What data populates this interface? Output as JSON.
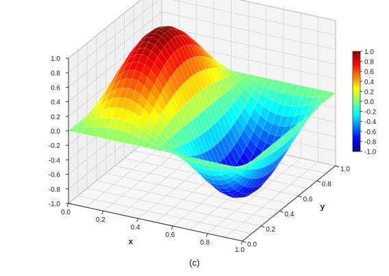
{
  "caption": "(c)",
  "chart_data": {
    "type": "surface3d",
    "function": "sin(2*pi*x) * sin(pi*y)",
    "x": [
      0.0,
      0.2,
      0.4,
      0.6,
      0.8,
      1.0
    ],
    "y": [
      0.0,
      0.2,
      0.4,
      0.6,
      0.8,
      1.0
    ],
    "z_samples": [
      {
        "x": 0.25,
        "y": 0.5,
        "z": 1.0
      },
      {
        "x": 0.75,
        "y": 0.5,
        "z": -1.0
      },
      {
        "x": 0.0,
        "y": 0.5,
        "z": 0.0
      },
      {
        "x": 0.5,
        "y": 0.5,
        "z": 0.0
      },
      {
        "x": 1.0,
        "y": 0.5,
        "z": 0.0
      }
    ],
    "xlabel": "x",
    "ylabel": "y",
    "zlabel": "",
    "xlim": [
      0,
      1
    ],
    "ylim": [
      0,
      1
    ],
    "zlim": [
      -1,
      1
    ],
    "x_ticks": [
      "0.0",
      "0.2",
      "0.4",
      "0.6",
      "0.8",
      "1.0"
    ],
    "y_ticks": [
      "0.0",
      "0.2",
      "0.4",
      "0.6",
      "0.8",
      "1.0"
    ],
    "z_ticks": [
      "-1.0",
      "-0.8",
      "-0.6",
      "-0.4",
      "-0.2",
      "0.0",
      "0.2",
      "0.4",
      "0.6",
      "0.8",
      "1.0"
    ],
    "colorbar": {
      "ticks": [
        "1.0",
        "0.8",
        "0.6",
        "0.4",
        "0.2",
        "0.0",
        "-0.2",
        "-0.4",
        "-0.6",
        "-0.8",
        "-1.0"
      ],
      "range": [
        -1,
        1
      ],
      "colormap": "jet",
      "placement": "right"
    },
    "grid": true
  }
}
